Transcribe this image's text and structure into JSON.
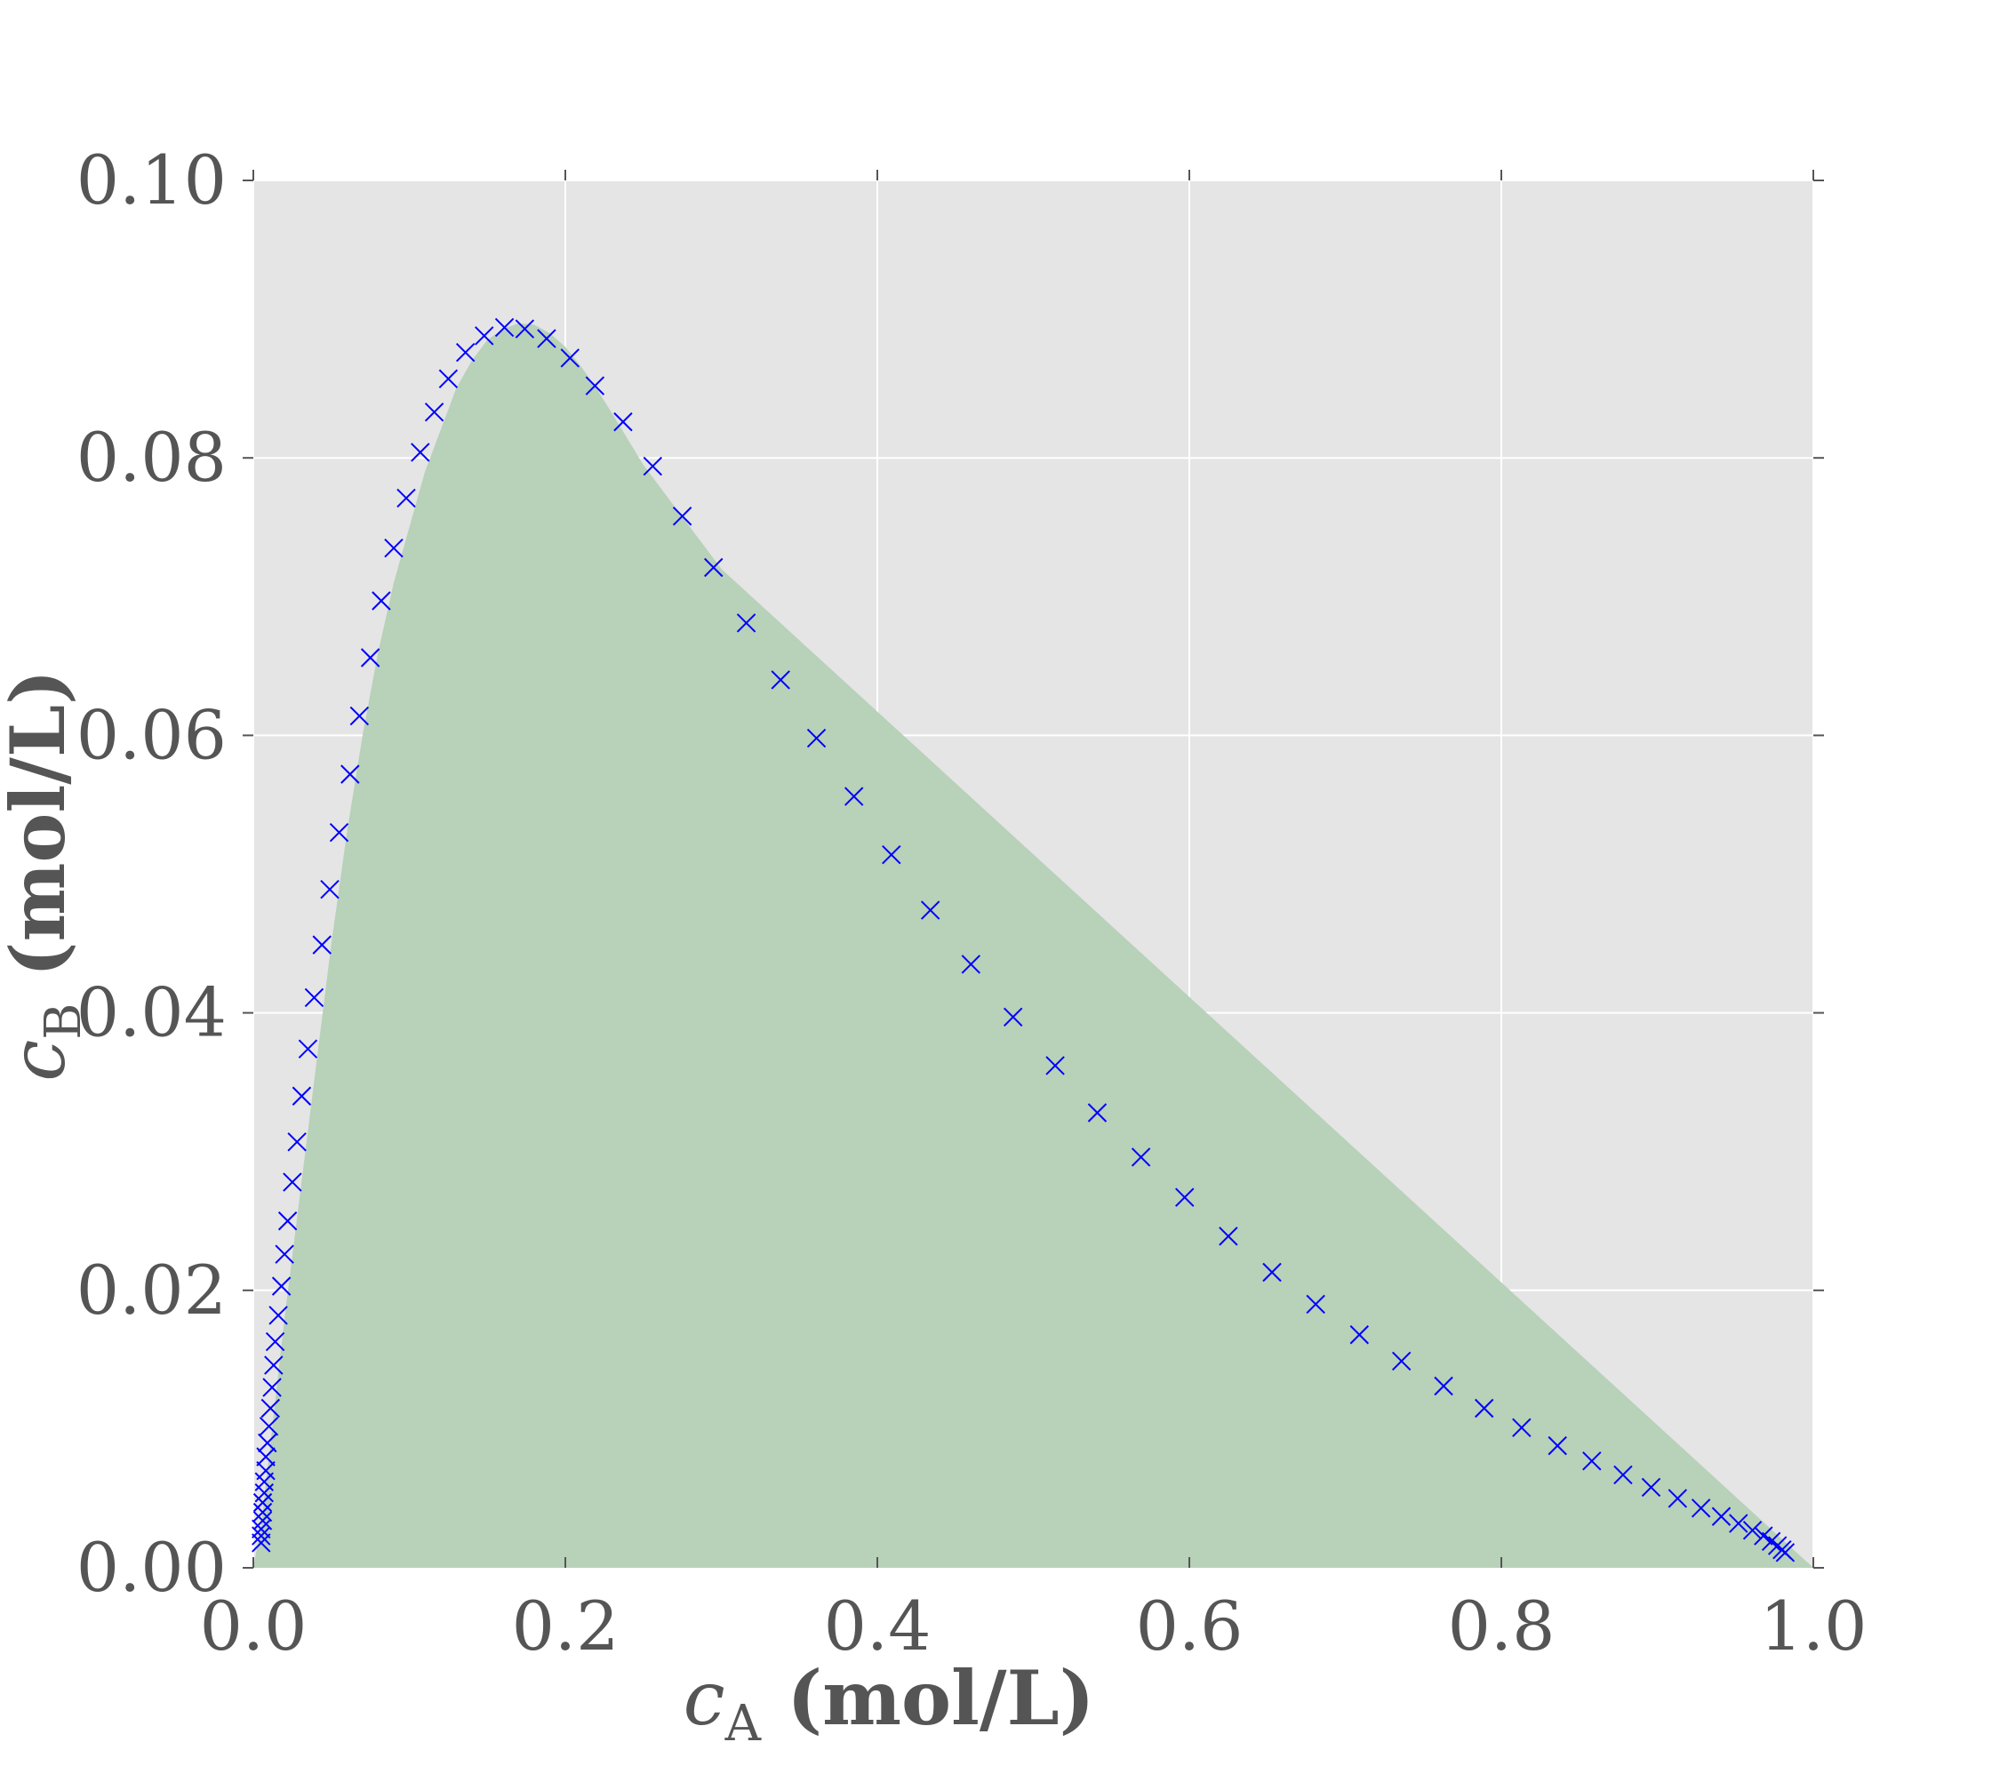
{
  "chart_data": {
    "type": "scatter",
    "xlabel": {
      "var": "c",
      "sub": "A",
      "unit": "(mol/L)"
    },
    "ylabel": {
      "var": "c",
      "sub": "B",
      "unit": "(mol/L)"
    },
    "xlim": [
      0.0,
      1.0
    ],
    "ylim": [
      0.0,
      0.1
    ],
    "xticks": [
      "0.0",
      "0.2",
      "0.4",
      "0.6",
      "0.8",
      "1.0"
    ],
    "yticks": [
      "0.00",
      "0.02",
      "0.04",
      "0.06",
      "0.08",
      "0.10"
    ],
    "grid": true,
    "colors": {
      "plot_background": "#e5e5e5",
      "grid": "#ffffff",
      "region_fill": "#b8d1b9",
      "marker": "#0000ff",
      "text": "#555555"
    },
    "region": {
      "description_points_boundary_top": [
        [
          0.0,
          0.0
        ],
        [
          0.005,
          0.003
        ],
        [
          0.01,
          0.008
        ],
        [
          0.02,
          0.018
        ],
        [
          0.03,
          0.027
        ],
        [
          0.04,
          0.036
        ],
        [
          0.05,
          0.045
        ],
        [
          0.06,
          0.053
        ],
        [
          0.07,
          0.06
        ],
        [
          0.08,
          0.066
        ],
        [
          0.09,
          0.071
        ],
        [
          0.1,
          0.075
        ],
        [
          0.11,
          0.079
        ],
        [
          0.12,
          0.082
        ],
        [
          0.13,
          0.085
        ],
        [
          0.14,
          0.087
        ],
        [
          0.15,
          0.0885
        ],
        [
          0.16,
          0.0893
        ],
        [
          0.17,
          0.0897
        ],
        [
          0.18,
          0.0896
        ],
        [
          0.19,
          0.089
        ],
        [
          0.2,
          0.088
        ],
        [
          0.21,
          0.0866
        ],
        [
          0.22,
          0.085
        ],
        [
          0.23,
          0.0832
        ],
        [
          0.25,
          0.0795
        ],
        [
          0.3,
          0.072
        ],
        [
          1.0,
          0.0
        ]
      ]
    },
    "series": [
      {
        "marker": "x",
        "x": [
          0.005,
          0.005,
          0.005,
          0.006,
          0.006,
          0.006,
          0.007,
          0.007,
          0.008,
          0.008,
          0.009,
          0.01,
          0.011,
          0.012,
          0.013,
          0.014,
          0.016,
          0.018,
          0.02,
          0.022,
          0.025,
          0.028,
          0.031,
          0.035,
          0.039,
          0.044,
          0.049,
          0.055,
          0.062,
          0.068,
          0.075,
          0.082,
          0.09,
          0.098,
          0.107,
          0.116,
          0.125,
          0.136,
          0.148,
          0.161,
          0.174,
          0.188,
          0.203,
          0.219,
          0.237,
          0.256,
          0.275,
          0.295,
          0.316,
          0.338,
          0.361,
          0.385,
          0.409,
          0.434,
          0.46,
          0.487,
          0.514,
          0.541,
          0.569,
          0.597,
          0.625,
          0.653,
          0.681,
          0.709,
          0.736,
          0.763,
          0.789,
          0.813,
          0.836,
          0.858,
          0.878,
          0.896,
          0.913,
          0.928,
          0.941,
          0.952,
          0.961,
          0.968,
          0.973,
          0.977,
          0.98,
          0.982
        ],
        "y": [
          0.0018,
          0.0023,
          0.0028,
          0.0034,
          0.004,
          0.0047,
          0.0054,
          0.0062,
          0.007,
          0.008,
          0.009,
          0.0102,
          0.0115,
          0.013,
          0.0146,
          0.0163,
          0.0182,
          0.0203,
          0.0226,
          0.025,
          0.0278,
          0.0307,
          0.034,
          0.0374,
          0.0411,
          0.0449,
          0.0489,
          0.053,
          0.0572,
          0.0614,
          0.0656,
          0.0697,
          0.0735,
          0.0771,
          0.0804,
          0.0833,
          0.0857,
          0.0876,
          0.0888,
          0.0894,
          0.0893,
          0.0886,
          0.0872,
          0.0852,
          0.0826,
          0.0794,
          0.0758,
          0.0721,
          0.0681,
          0.064,
          0.0598,
          0.0556,
          0.0514,
          0.0474,
          0.0435,
          0.0397,
          0.0362,
          0.0328,
          0.0296,
          0.0267,
          0.0239,
          0.0213,
          0.019,
          0.0168,
          0.0149,
          0.0131,
          0.0115,
          0.0101,
          0.0088,
          0.0077,
          0.0067,
          0.0058,
          0.005,
          0.0043,
          0.0037,
          0.0032,
          0.0027,
          0.0023,
          0.0019,
          0.0016,
          0.0013,
          0.0011
        ]
      }
    ]
  }
}
